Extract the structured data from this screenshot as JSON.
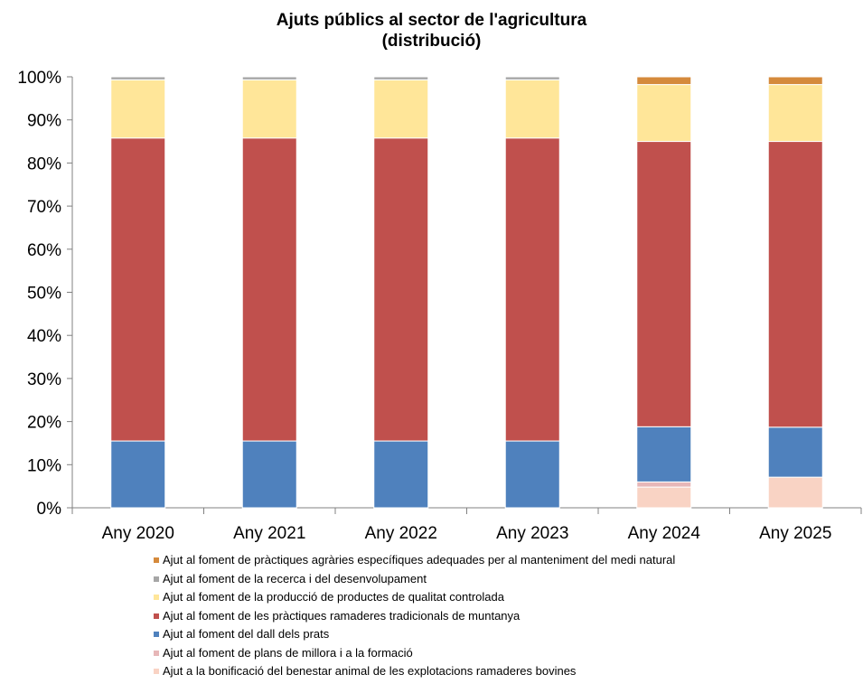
{
  "chart_data": {
    "type": "bar",
    "stacked": true,
    "title": "Ajuts públics al sector de l'agricultura",
    "subtitle": "(distribució)",
    "categories": [
      "Any 2020",
      "Any 2021",
      "Any 2022",
      "Any 2023",
      "Any 2024",
      "Any 2025"
    ],
    "ylim": [
      0,
      100
    ],
    "yticks": [
      "0%",
      "10%",
      "20%",
      "30%",
      "40%",
      "50%",
      "60%",
      "70%",
      "80%",
      "90%",
      "100%"
    ],
    "legend_position": "bottom",
    "series": [
      {
        "name": "Ajut a la bonificació del benestar animal de les explotacions ramaderes bovines",
        "color": "#F9D3C4",
        "values": [
          0,
          0,
          0,
          0,
          4.8,
          7.1
        ]
      },
      {
        "name": "Ajut al foment de plans de millora i a la formació",
        "color": "#E7B7B8",
        "values": [
          0,
          0,
          0,
          0,
          1.2,
          0
        ]
      },
      {
        "name": "Ajut al foment del dall dels prats",
        "color": "#4F81BD",
        "values": [
          15.5,
          15.5,
          15.5,
          15.5,
          12.8,
          11.6
        ]
      },
      {
        "name": "Ajut al foment de les pràctiques ramaderes tradicionals de muntanya",
        "color": "#C0504D",
        "values": [
          70.3,
          70.3,
          70.3,
          70.3,
          66.2,
          66.3
        ]
      },
      {
        "name": "Ajut al foment de la producció de productes de qualitat controlada",
        "color": "#FFE699",
        "values": [
          13.5,
          13.5,
          13.5,
          13.5,
          13.2,
          13.2
        ]
      },
      {
        "name": "Ajut al foment de la recerca i del desenvolupament",
        "color": "#A6A6A6",
        "values": [
          0.7,
          0.7,
          0.7,
          0.7,
          0,
          0
        ]
      },
      {
        "name": "Ajut al foment de pràctiques agràries específiques adequades per al manteniment del medi natural",
        "color": "#D58A3C",
        "values": [
          0,
          0,
          0,
          0,
          1.8,
          1.8
        ]
      }
    ]
  }
}
